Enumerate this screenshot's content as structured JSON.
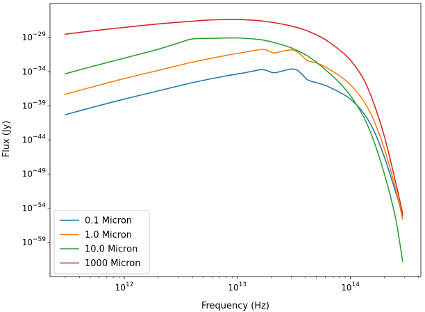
{
  "chart_data": {
    "type": "line",
    "title": "",
    "xlabel": "Frequency (Hz)",
    "ylabel": "Flux (Jy)",
    "xscale": "log",
    "yscale": "log",
    "xlim": [
      220000000000.0,
      420000000000000.0
    ],
    "ylim": [
      1e-64,
      1e-24
    ],
    "x_major_ticks": [
      {
        "value": 1000000000000.0,
        "base": "10",
        "exp": "12"
      },
      {
        "value": 10000000000000.0,
        "base": "10",
        "exp": "13"
      },
      {
        "value": 100000000000000.0,
        "base": "10",
        "exp": "14"
      }
    ],
    "y_major_ticks": [
      {
        "value": 1e-59,
        "base": "10",
        "exp": "−59"
      },
      {
        "value": 1e-54,
        "base": "10",
        "exp": "−54"
      },
      {
        "value": 1e-49,
        "base": "10",
        "exp": "−49"
      },
      {
        "value": 1e-44,
        "base": "10",
        "exp": "−44"
      },
      {
        "value": 1e-39,
        "base": "10",
        "exp": "−39"
      },
      {
        "value": 1e-34,
        "base": "10",
        "exp": "−34"
      },
      {
        "value": 1e-29,
        "base": "10",
        "exp": "−29"
      }
    ],
    "legend": {
      "location": "lower left"
    },
    "series": [
      {
        "name": "0.1 Micron",
        "color": "#1f77b4",
        "points": [
          [
            300000000000.0,
            -40.3
          ],
          [
            500000000000.0,
            -39.3
          ],
          [
            1000000000000.0,
            -38.0
          ],
          [
            2000000000000.0,
            -36.8
          ],
          [
            4000000000000.0,
            -35.6
          ],
          [
            8000000000000.0,
            -34.6
          ],
          [
            12000000000000.0,
            -34.1
          ],
          [
            16000000000000.0,
            -33.7
          ],
          [
            18000000000000.0,
            -33.8
          ],
          [
            21000000000000.0,
            -34.15
          ],
          [
            25000000000000.0,
            -33.9
          ],
          [
            30000000000000.0,
            -33.6
          ],
          [
            34000000000000.0,
            -33.8
          ],
          [
            38000000000000.0,
            -34.5
          ],
          [
            42000000000000.0,
            -35.2
          ],
          [
            50000000000000.0,
            -35.6
          ],
          [
            60000000000000.0,
            -36.0
          ],
          [
            80000000000000.0,
            -37.0
          ],
          [
            100000000000000.0,
            -38.0
          ],
          [
            130000000000000.0,
            -40.0
          ],
          [
            160000000000000.0,
            -42.5
          ],
          [
            200000000000000.0,
            -46.5
          ],
          [
            250000000000000.0,
            -51.5
          ],
          [
            290000000000000.0,
            -55.1
          ]
        ]
      },
      {
        "name": "1.0 Micron",
        "color": "#ff7f0e",
        "points": [
          [
            300000000000.0,
            -37.3
          ],
          [
            500000000000.0,
            -36.3
          ],
          [
            1000000000000.0,
            -35.0
          ],
          [
            2000000000000.0,
            -33.8
          ],
          [
            4000000000000.0,
            -32.6
          ],
          [
            8000000000000.0,
            -31.6
          ],
          [
            12000000000000.0,
            -31.1
          ],
          [
            16000000000000.0,
            -30.75
          ],
          [
            18000000000000.0,
            -30.8
          ],
          [
            21000000000000.0,
            -31.25
          ],
          [
            25000000000000.0,
            -31.0
          ],
          [
            30000000000000.0,
            -30.8
          ],
          [
            34000000000000.0,
            -31.1
          ],
          [
            38000000000000.0,
            -31.8
          ],
          [
            42000000000000.0,
            -32.4
          ],
          [
            50000000000000.0,
            -32.7
          ],
          [
            60000000000000.0,
            -33.3
          ],
          [
            80000000000000.0,
            -34.6
          ],
          [
            100000000000000.0,
            -35.9
          ],
          [
            130000000000000.0,
            -38.2
          ],
          [
            160000000000000.0,
            -41.0
          ],
          [
            200000000000000.0,
            -45.3
          ],
          [
            250000000000000.0,
            -51.0
          ],
          [
            290000000000000.0,
            -55.6
          ]
        ]
      },
      {
        "name": "10.0 Micron",
        "color": "#2ca02c",
        "points": [
          [
            300000000000.0,
            -34.3
          ],
          [
            500000000000.0,
            -33.3
          ],
          [
            1000000000000.0,
            -32.0
          ],
          [
            2000000000000.0,
            -30.7
          ],
          [
            3000000000000.0,
            -29.8
          ],
          [
            4000000000000.0,
            -29.2
          ],
          [
            6000000000000.0,
            -29.1
          ],
          [
            10000000000000.0,
            -29.05
          ],
          [
            16000000000000.0,
            -29.3
          ],
          [
            22000000000000.0,
            -29.8
          ],
          [
            30000000000000.0,
            -30.5
          ],
          [
            40000000000000.0,
            -31.5
          ],
          [
            50000000000000.0,
            -32.6
          ],
          [
            60000000000000.0,
            -33.7
          ],
          [
            80000000000000.0,
            -35.6
          ],
          [
            100000000000000.0,
            -37.5
          ],
          [
            130000000000000.0,
            -40.5
          ],
          [
            160000000000000.0,
            -44.0
          ],
          [
            200000000000000.0,
            -49.0
          ],
          [
            250000000000000.0,
            -55.3
          ],
          [
            290000000000000.0,
            -61.8
          ]
        ]
      },
      {
        "name": "1000 Micron",
        "color": "#d62728",
        "points": [
          [
            300000000000.0,
            -28.5
          ],
          [
            500000000000.0,
            -28.05
          ],
          [
            1000000000000.0,
            -27.5
          ],
          [
            2000000000000.0,
            -27.0
          ],
          [
            4000000000000.0,
            -26.6
          ],
          [
            6000000000000.0,
            -26.4
          ],
          [
            10000000000000.0,
            -26.35
          ],
          [
            15000000000000.0,
            -26.5
          ],
          [
            20000000000000.0,
            -26.75
          ],
          [
            30000000000000.0,
            -27.3
          ],
          [
            40000000000000.0,
            -27.9
          ],
          [
            50000000000000.0,
            -28.6
          ],
          [
            60000000000000.0,
            -29.3
          ],
          [
            80000000000000.0,
            -30.8
          ],
          [
            100000000000000.0,
            -32.3
          ],
          [
            130000000000000.0,
            -35.0
          ],
          [
            160000000000000.0,
            -38.5
          ],
          [
            200000000000000.0,
            -43.5
          ],
          [
            250000000000000.0,
            -50.0
          ],
          [
            290000000000000.0,
            -54.8
          ]
        ]
      }
    ]
  }
}
